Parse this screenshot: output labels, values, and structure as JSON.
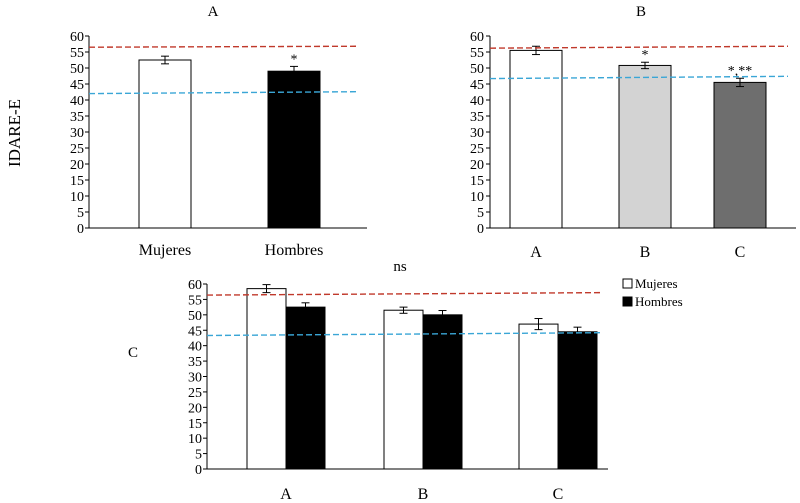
{
  "figure": {
    "y_axis_label": "IDARE-E",
    "panel_c_side_label": "C"
  },
  "chart_data": [
    {
      "type": "bar",
      "panel": "A",
      "title": "A",
      "categories": [
        "Mujeres",
        "Hombres"
      ],
      "values": [
        52.5,
        49
      ],
      "errors": [
        1.2,
        1.5
      ],
      "bar_colors": [
        "#ffffff",
        "#000000"
      ],
      "annotations": [
        "",
        "*"
      ],
      "ylim": [
        0,
        60
      ],
      "yticks": [
        0,
        5,
        10,
        15,
        20,
        25,
        30,
        35,
        40,
        45,
        50,
        55,
        60
      ],
      "reference_lines": [
        {
          "y_start": 56.5,
          "y_end": 56.8,
          "color": "#c0392b",
          "style": "dashed"
        },
        {
          "y_start": 42,
          "y_end": 42.6,
          "color": "#3aa6d6",
          "style": "dashed"
        }
      ]
    },
    {
      "type": "bar",
      "panel": "B",
      "title": "B",
      "categories": [
        "A",
        "B",
        "C"
      ],
      "values": [
        55.5,
        50.8,
        45.5
      ],
      "errors": [
        1.3,
        1.0,
        1.3
      ],
      "bar_colors": [
        "#ffffff",
        "#d3d3d3",
        "#6e6e6e"
      ],
      "annotations": [
        "",
        "*",
        "*,**"
      ],
      "ylim": [
        0,
        60
      ],
      "yticks": [
        0,
        5,
        10,
        15,
        20,
        25,
        30,
        35,
        40,
        45,
        50,
        55,
        60
      ],
      "reference_lines": [
        {
          "y_start": 56.2,
          "y_end": 56.8,
          "color": "#c0392b",
          "style": "dashed"
        },
        {
          "y_start": 46.7,
          "y_end": 47.4,
          "color": "#3aa6d6",
          "style": "dashed"
        }
      ]
    },
    {
      "type": "bar",
      "panel": "C",
      "title": "ns",
      "categories": [
        "A",
        "B",
        "C"
      ],
      "series": [
        {
          "name": "Mujeres",
          "values": [
            58.5,
            51.5,
            47
          ],
          "errors": [
            1.3,
            1.0,
            1.8
          ],
          "color": "#ffffff"
        },
        {
          "name": "Hombres",
          "values": [
            52.5,
            50,
            44.5
          ],
          "errors": [
            1.4,
            1.4,
            1.5
          ],
          "color": "#000000"
        }
      ],
      "legend_position": "top-right",
      "ylim": [
        0,
        60
      ],
      "yticks": [
        0,
        5,
        10,
        15,
        20,
        25,
        30,
        35,
        40,
        45,
        50,
        55,
        60
      ],
      "reference_lines": [
        {
          "y_start": 56.4,
          "y_end": 57.2,
          "color": "#c0392b",
          "style": "dashed"
        },
        {
          "y_start": 43.3,
          "y_end": 44.2,
          "color": "#3aa6d6",
          "style": "dashed"
        }
      ]
    }
  ]
}
